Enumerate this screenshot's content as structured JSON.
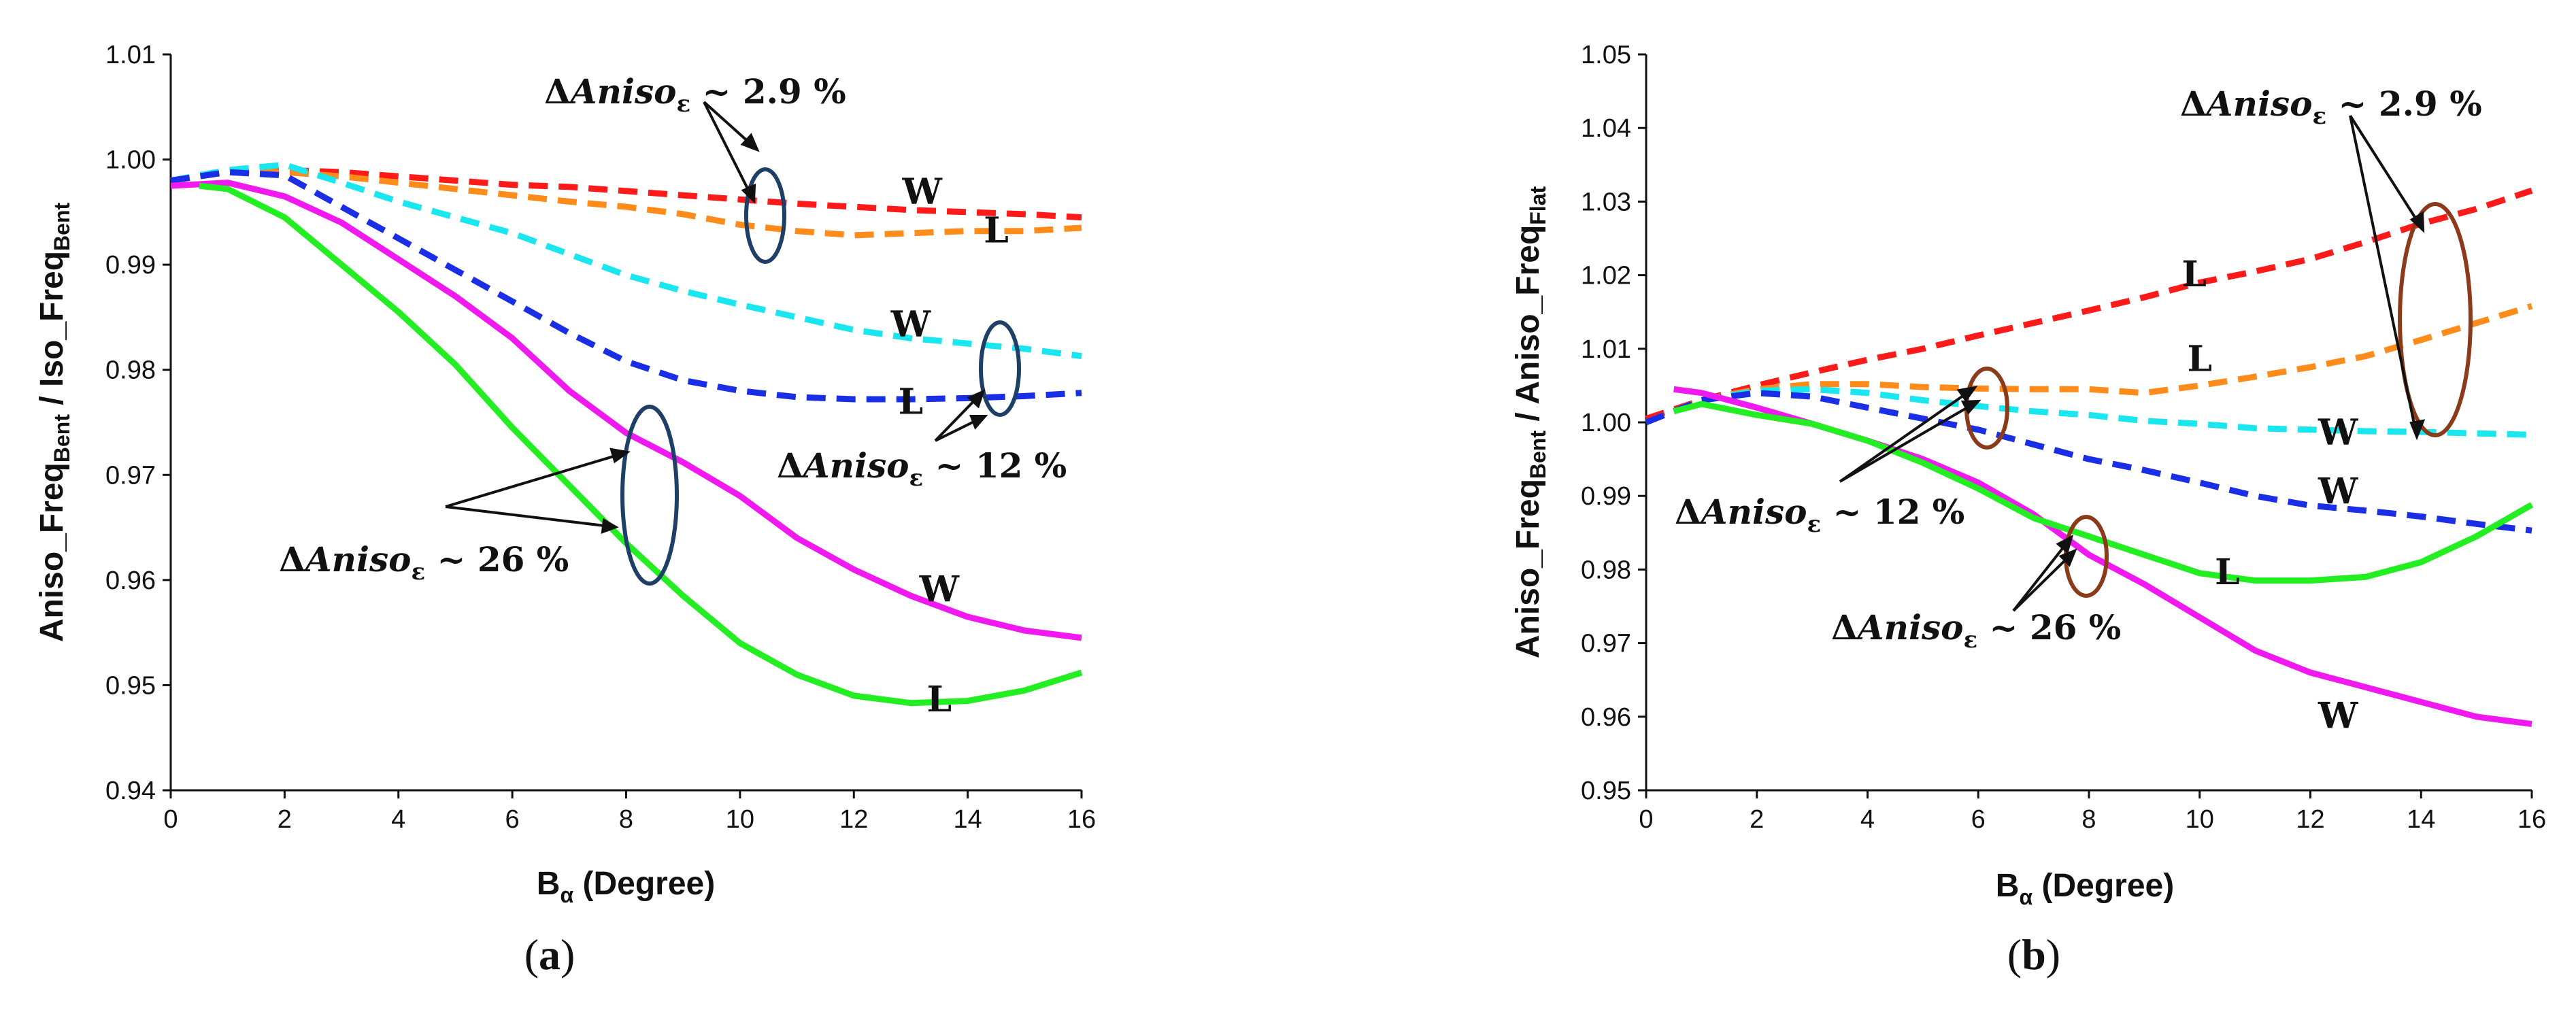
{
  "chart_data": [
    {
      "type": "line",
      "panel_label": "(a)",
      "panel_letter": "a",
      "xlabel": {
        "main": "B",
        "sub": "α",
        "rest": " (Degree)"
      },
      "ylabel": {
        "p1": "Aniso_Freq",
        "s1": "Bent",
        "p2": " / Iso_Freq",
        "s2": "Bent"
      },
      "xlim": [
        0,
        16
      ],
      "ylim": [
        0.94,
        1.01
      ],
      "xticks": [
        "0",
        "2",
        "4",
        "6",
        "8",
        "10",
        "12",
        "14",
        "16"
      ],
      "yticks": [
        "0.94",
        "0.95",
        "0.96",
        "0.97",
        "0.98",
        "0.99",
        "1.00",
        "1.01"
      ],
      "series": [
        {
          "name": "red-W",
          "color": "#ff1a1a",
          "dash": true,
          "label": "W",
          "x": [
            0,
            1,
            2,
            3,
            4,
            5,
            6,
            7,
            8,
            9,
            10,
            11,
            12,
            13,
            14,
            15,
            16
          ],
          "y": [
            0.998,
            0.9988,
            0.999,
            0.9988,
            0.9984,
            0.998,
            0.9976,
            0.9974,
            0.997,
            0.9966,
            0.9962,
            0.9958,
            0.9955,
            0.9952,
            0.995,
            0.9948,
            0.9945
          ]
        },
        {
          "name": "orange-L",
          "color": "#ff8c1a",
          "dash": true,
          "label": "L",
          "x": [
            0,
            1,
            2,
            3,
            4,
            5,
            6,
            7,
            8,
            9,
            10,
            11,
            12,
            13,
            14,
            15,
            16
          ],
          "y": [
            0.998,
            0.9988,
            0.9988,
            0.9984,
            0.9978,
            0.9972,
            0.9966,
            0.996,
            0.9955,
            0.9948,
            0.9938,
            0.9932,
            0.9928,
            0.993,
            0.9932,
            0.9932,
            0.9935
          ]
        },
        {
          "name": "cyan-W",
          "color": "#1ae6f0",
          "dash": true,
          "label": "W",
          "x": [
            0,
            1,
            2,
            3,
            4,
            5,
            6,
            7,
            8,
            9,
            10,
            11,
            12,
            13,
            14,
            15,
            16
          ],
          "y": [
            0.998,
            0.999,
            0.9995,
            0.9978,
            0.996,
            0.9945,
            0.993,
            0.991,
            0.989,
            0.9875,
            0.9862,
            0.985,
            0.9838,
            0.983,
            0.9825,
            0.982,
            0.9813
          ]
        },
        {
          "name": "blue-L",
          "color": "#1a2ee6",
          "dash": true,
          "label": "L",
          "x": [
            0,
            1,
            2,
            3,
            4,
            5,
            6,
            7,
            8,
            9,
            10,
            11,
            12,
            13,
            14,
            15,
            16
          ],
          "y": [
            0.998,
            0.9988,
            0.9985,
            0.9955,
            0.9925,
            0.9895,
            0.9865,
            0.9835,
            0.9808,
            0.979,
            0.978,
            0.9774,
            0.9772,
            0.9772,
            0.9773,
            0.9775,
            0.9778
          ]
        },
        {
          "name": "magenta-W",
          "color": "#f01af0",
          "dash": false,
          "label": "W",
          "x": [
            0,
            1,
            2,
            3,
            4,
            5,
            6,
            7,
            8,
            9,
            10,
            11,
            12,
            13,
            14,
            15,
            16
          ],
          "y": [
            0.9975,
            0.9978,
            0.9965,
            0.994,
            0.9905,
            0.987,
            0.983,
            0.978,
            0.974,
            0.9712,
            0.968,
            0.964,
            0.961,
            0.9585,
            0.9565,
            0.9552,
            0.9545
          ]
        },
        {
          "name": "green-L",
          "color": "#22ee22",
          "dash": false,
          "label": "L",
          "x": [
            0.5,
            1,
            2,
            3,
            4,
            5,
            6,
            7,
            8,
            9,
            10,
            11,
            12,
            13,
            14,
            15,
            16
          ],
          "y": [
            0.9975,
            0.9972,
            0.9945,
            0.99,
            0.9855,
            0.9805,
            0.9745,
            0.969,
            0.9635,
            0.9585,
            0.954,
            0.951,
            0.949,
            0.9483,
            0.9485,
            0.9495,
            0.9512
          ]
        }
      ],
      "curve_labels": [
        {
          "text": "W",
          "x": 13.2,
          "y": 0.9958
        },
        {
          "text": "L",
          "x": 14.5,
          "y": 0.9921
        },
        {
          "text": "W",
          "x": 13.0,
          "y": 0.9832
        },
        {
          "text": "L",
          "x": 13.0,
          "y": 0.9758
        },
        {
          "text": "W",
          "x": 13.5,
          "y": 0.958
        },
        {
          "text": "L",
          "x": 13.5,
          "y": 0.9475
        }
      ],
      "annotations": [
        {
          "pre": "Δ",
          "it": "Aniso",
          "sub": "ε",
          "post": " ~ 2.9 %"
        },
        {
          "pre": "Δ",
          "it": "Aniso",
          "sub": "ε",
          "post": " ~ 12 %"
        },
        {
          "pre": "Δ",
          "it": "Aniso",
          "sub": "ε",
          "post": " ~ 26 %"
        }
      ],
      "ellipse_color": "#1e3f66"
    },
    {
      "type": "line",
      "panel_label": "(b)",
      "panel_letter": "b",
      "xlabel": {
        "main": "B",
        "sub": "α",
        "rest": " (Degree)"
      },
      "ylabel": {
        "p1": "Aniso_Freq",
        "s1": "Bent",
        "p2": " / Aniso_Freq",
        "s2": "Flat"
      },
      "xlim": [
        0,
        16
      ],
      "ylim": [
        0.95,
        1.05
      ],
      "xticks": [
        "0",
        "2",
        "4",
        "6",
        "8",
        "10",
        "12",
        "14",
        "16"
      ],
      "yticks": [
        "0.95",
        "0.96",
        "0.97",
        "0.98",
        "0.99",
        "1.00",
        "1.01",
        "1.02",
        "1.03",
        "1.04",
        "1.05"
      ],
      "series": [
        {
          "name": "red-L",
          "color": "#ff1a1a",
          "dash": true,
          "label": "L",
          "x": [
            0,
            1,
            2,
            3,
            4,
            5,
            6,
            7,
            8,
            9,
            10,
            11,
            12,
            13,
            14,
            15,
            16
          ],
          "y": [
            1.0005,
            1.003,
            1.005,
            1.0068,
            1.0085,
            1.01,
            1.0118,
            1.0135,
            1.0152,
            1.017,
            1.019,
            1.0205,
            1.0222,
            1.0245,
            1.027,
            1.029,
            1.0315
          ]
        },
        {
          "name": "orange-L",
          "color": "#ff8c1a",
          "dash": true,
          "label": "L",
          "x": [
            0,
            1,
            2,
            3,
            4,
            5,
            6,
            7,
            8,
            9,
            10,
            11,
            12,
            13,
            14,
            15,
            16
          ],
          "y": [
            1.0,
            1.003,
            1.0045,
            1.0052,
            1.0052,
            1.0048,
            1.0046,
            1.0045,
            1.0045,
            1.004,
            1.005,
            1.0062,
            1.0075,
            1.009,
            1.0112,
            1.0135,
            1.0158
          ]
        },
        {
          "name": "cyan-W",
          "color": "#1ae6f0",
          "dash": true,
          "label": "W",
          "x": [
            0,
            1,
            2,
            3,
            4,
            5,
            6,
            7,
            8,
            9,
            10,
            11,
            12,
            13,
            14,
            15,
            16
          ],
          "y": [
            1.0,
            1.003,
            1.0043,
            1.0045,
            1.004,
            1.003,
            1.0022,
            1.0015,
            1.001,
            1.0002,
            0.9998,
            0.9992,
            0.999,
            0.9988,
            0.9987,
            0.9985,
            0.9983
          ]
        },
        {
          "name": "blue-W",
          "color": "#1a2ee6",
          "dash": true,
          "label": "W",
          "x": [
            0,
            1,
            2,
            3,
            4,
            5,
            6,
            7,
            8,
            9,
            10,
            11,
            12,
            13,
            14,
            15,
            16
          ],
          "y": [
            1.0,
            1.003,
            1.004,
            1.0035,
            1.002,
            1.0005,
            0.999,
            0.997,
            0.995,
            0.9935,
            0.9918,
            0.99,
            0.9887,
            0.988,
            0.9872,
            0.9862,
            0.9853
          ]
        },
        {
          "name": "magenta-W",
          "color": "#f01af0",
          "dash": false,
          "label": "W",
          "x": [
            0.5,
            1,
            2,
            3,
            4,
            5,
            6,
            7,
            8,
            9,
            10,
            11,
            12,
            13,
            14,
            15,
            16
          ],
          "y": [
            1.0045,
            1.004,
            1.002,
            0.9998,
            0.9975,
            0.995,
            0.9918,
            0.9875,
            0.982,
            0.978,
            0.9735,
            0.969,
            0.966,
            0.964,
            0.962,
            0.96,
            0.959
          ]
        },
        {
          "name": "green-L",
          "color": "#22ee22",
          "dash": false,
          "label": "L",
          "x": [
            0.5,
            1,
            2,
            3,
            4,
            5,
            6,
            7,
            8,
            9,
            10,
            11,
            12,
            13,
            14,
            15,
            16
          ],
          "y": [
            1.0015,
            1.0025,
            1.001,
            0.9998,
            0.9975,
            0.9945,
            0.991,
            0.987,
            0.9845,
            0.982,
            0.9795,
            0.9785,
            0.9785,
            0.979,
            0.981,
            0.9845,
            0.9888
          ]
        }
      ],
      "curve_labels": [
        {
          "text": "L",
          "x": 9.9,
          "y": 1.0185
        },
        {
          "text": "L",
          "x": 10.0,
          "y": 1.007
        },
        {
          "text": "W",
          "x": 12.5,
          "y": 0.997
        },
        {
          "text": "W",
          "x": 12.5,
          "y": 0.989
        },
        {
          "text": "L",
          "x": 10.5,
          "y": 0.978
        },
        {
          "text": "W",
          "x": 12.5,
          "y": 0.9585
        }
      ],
      "annotations": [
        {
          "pre": "Δ",
          "it": "Aniso",
          "sub": "ε",
          "post": " ~ 2.9 %"
        },
        {
          "pre": "Δ",
          "it": "Aniso",
          "sub": "ε",
          "post": " ~ 12 %"
        },
        {
          "pre": "Δ",
          "it": "Aniso",
          "sub": "ε",
          "post": " ~ 26 %"
        }
      ],
      "ellipse_color": "#8b3a1a"
    }
  ]
}
